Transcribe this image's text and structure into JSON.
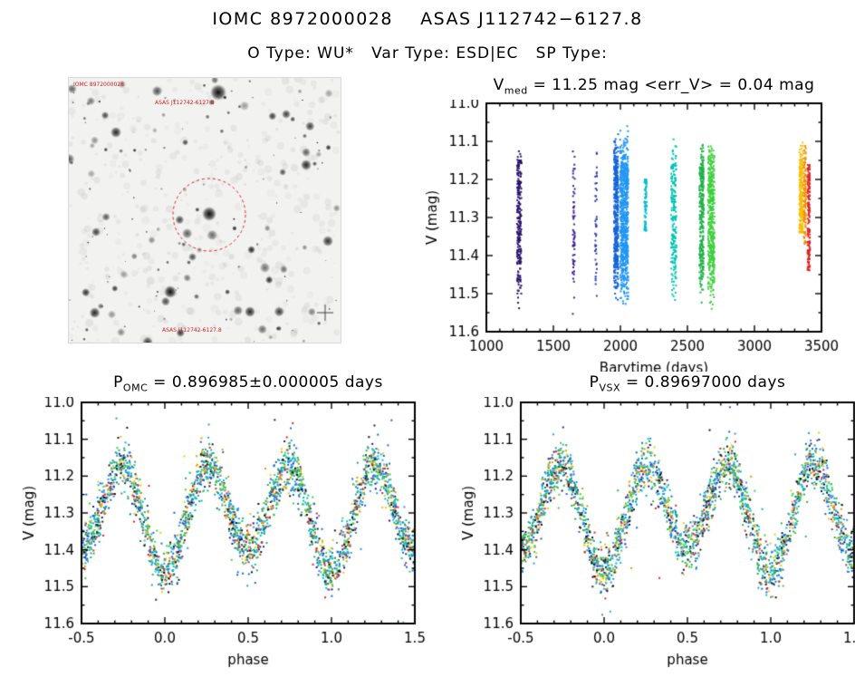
{
  "header": {
    "title": "IOMC 8972000028    ASAS J112742−6127.8",
    "subtitle": "O Type: WU*   Var Type: ESD|EC   SP Type:"
  },
  "finder": {
    "annotations": {
      "top_left": "IOMC 8972000028",
      "center": "ASAS J112742-6127.8",
      "bottom": "ASAS J112742-6127.8"
    },
    "marker_color": "#cc2222"
  },
  "chart_data": [
    {
      "type": "scatter",
      "name": "v-vs-barytime",
      "title": {
        "prefix": "V",
        "sub": "med",
        "suffix": " = 11.25 mag <err_V> = 0.04 mag"
      },
      "xlabel": "Barytime (days)",
      "ylabel": "V (mag)",
      "xlim": [
        1000,
        3500
      ],
      "ylim": [
        11.6,
        11.0
      ],
      "xticks": [
        1000,
        1500,
        2000,
        2500,
        3000,
        3500
      ],
      "yticks": [
        11.0,
        11.1,
        11.2,
        11.3,
        11.4,
        11.5,
        11.6
      ],
      "x_minor": 100,
      "y_minor": 0.05,
      "x_decimals": 0,
      "grid": false,
      "legend": "none",
      "median_v_mag": 11.25,
      "mean_err_v_mag": 0.04,
      "lightcurve_model": {
        "a0": 11.3,
        "a1": 0.13,
        "a2": 0.03,
        "sigma": 0.032
      },
      "clusters": [
        {
          "x": 1245,
          "xw": 16,
          "n": 240,
          "color": "#2a1368"
        },
        {
          "x": 1652,
          "xw": 8,
          "n": 60,
          "color": "#3b1f8f"
        },
        {
          "x": 1818,
          "xw": 7,
          "n": 45,
          "color": "#2f3fae"
        },
        {
          "x": 1968,
          "xw": 16,
          "n": 420,
          "color": "#1565d8",
          "sigma": 0.04
        },
        {
          "x": 2028,
          "xw": 30,
          "n": 680,
          "color": "#2196f3",
          "sigma": 0.042
        },
        {
          "x": 2188,
          "xw": 9,
          "n": 70,
          "color": "#00bcd4",
          "ymin": 11.2,
          "ymax": 11.34
        },
        {
          "x": 2398,
          "xw": 20,
          "n": 210,
          "color": "#00c4b4"
        },
        {
          "x": 2606,
          "xw": 16,
          "n": 300,
          "color": "#21b14a"
        },
        {
          "x": 2678,
          "xw": 24,
          "n": 420,
          "color": "#3ecf3e",
          "sigma": 0.038
        },
        {
          "x": 3348,
          "xw": 13,
          "n": 230,
          "color": "#f4c20d",
          "ymin": 11.06,
          "ymax": 11.34
        },
        {
          "x": 3376,
          "xw": 9,
          "n": 110,
          "color": "#f29100",
          "ymin": 11.1,
          "ymax": 11.38
        },
        {
          "x": 3405,
          "xw": 9,
          "n": 150,
          "color": "#dd2222",
          "ymin": 11.16,
          "ymax": 11.44
        }
      ]
    },
    {
      "type": "scatter",
      "name": "phase-folded-omc-period",
      "title": {
        "prefix": "P",
        "sub": "OMC",
        "suffix": " = 0.896985±0.000005 days"
      },
      "period_days": 0.896985,
      "period_err_days": 5e-06,
      "xlabel": "phase",
      "ylabel": "V (mag)",
      "xlim": [
        -0.5,
        1.5
      ],
      "ylim": [
        11.6,
        11.0
      ],
      "xticks": [
        -0.5,
        0.0,
        0.5,
        1.0,
        1.5
      ],
      "yticks": [
        11.0,
        11.1,
        11.2,
        11.3,
        11.4,
        11.5,
        11.6
      ],
      "x_minor": 0.1,
      "y_minor": 0.05,
      "x_decimals": 1,
      "grid": false,
      "legend": "none",
      "lightcurve_model": {
        "a0": 11.3,
        "a1": 0.13,
        "a2": 0.03,
        "sigma": 0.032
      },
      "groups": [
        {
          "color": "#2a1368",
          "n": 160,
          "dy": 0
        },
        {
          "color": "#3b1f8f",
          "n": 90,
          "dy": 0
        },
        {
          "color": "#1565d8",
          "n": 380,
          "dy": 0
        },
        {
          "color": "#2196f3",
          "n": 420,
          "dy": 0
        },
        {
          "color": "#00bcd4",
          "n": 150,
          "dy": 0
        },
        {
          "color": "#00c4b4",
          "n": 170,
          "dy": 0
        },
        {
          "color": "#21b14a",
          "n": 300,
          "dy": 0
        },
        {
          "color": "#3ecf3e",
          "n": 260,
          "dy": 0
        },
        {
          "color": "#f4c20d",
          "n": 170,
          "dy": -0.01
        },
        {
          "color": "#f29100",
          "n": 110,
          "dy": 0
        },
        {
          "color": "#dd2222",
          "n": 150,
          "dy": 0.01
        },
        {
          "color": "#111111",
          "n": 130,
          "dy": 0
        }
      ]
    },
    {
      "type": "scatter",
      "name": "phase-folded-vsx-period",
      "title": {
        "prefix": "P",
        "sub": "VSX",
        "suffix": " = 0.89697000 days"
      },
      "period_days": 0.89697,
      "xlabel": "phase",
      "ylabel": "V (mag)",
      "xlim": [
        -0.5,
        1.5
      ],
      "ylim": [
        11.6,
        11.0
      ],
      "xticks": [
        -0.5,
        0.0,
        0.5,
        1.0,
        1.5
      ],
      "yticks": [
        11.0,
        11.1,
        11.2,
        11.3,
        11.4,
        11.5,
        11.6
      ],
      "x_minor": 0.1,
      "y_minor": 0.05,
      "x_decimals": 1,
      "grid": false,
      "legend": "none",
      "lightcurve_model": {
        "a0": 11.3,
        "a1": 0.13,
        "a2": 0.03,
        "sigma": 0.032
      },
      "groups": [
        {
          "color": "#2a1368",
          "n": 160,
          "dy": 0
        },
        {
          "color": "#3b1f8f",
          "n": 90,
          "dy": 0
        },
        {
          "color": "#1565d8",
          "n": 380,
          "dy": 0
        },
        {
          "color": "#2196f3",
          "n": 420,
          "dy": 0
        },
        {
          "color": "#00bcd4",
          "n": 150,
          "dy": 0
        },
        {
          "color": "#00c4b4",
          "n": 170,
          "dy": 0
        },
        {
          "color": "#21b14a",
          "n": 300,
          "dy": 0
        },
        {
          "color": "#3ecf3e",
          "n": 260,
          "dy": 0
        },
        {
          "color": "#f4c20d",
          "n": 170,
          "dy": -0.01
        },
        {
          "color": "#f29100",
          "n": 110,
          "dy": 0
        },
        {
          "color": "#dd2222",
          "n": 150,
          "dy": 0.01
        },
        {
          "color": "#111111",
          "n": 130,
          "dy": 0
        }
      ]
    }
  ]
}
